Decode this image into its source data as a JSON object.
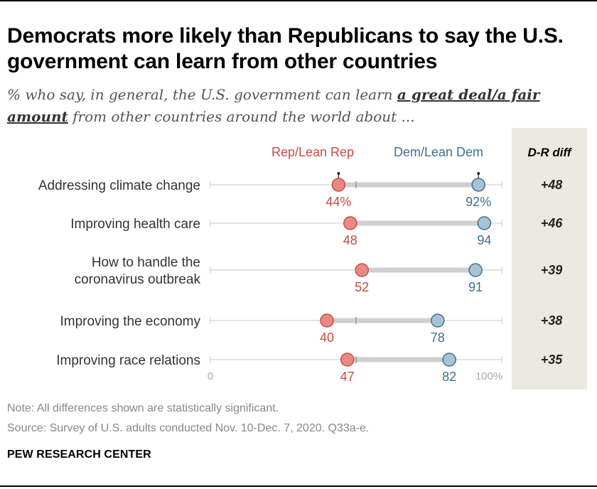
{
  "title": "Democrats more likely than Republicans to say the U.S. government can learn from other countries",
  "subtitle": {
    "pre": "% who say, in general, the U.S. government can learn ",
    "emphasis": "a great deal/a fair amount",
    "post": " from other countries around the world about ..."
  },
  "chart_data": {
    "type": "dot",
    "xlim": [
      0,
      100
    ],
    "axis": {
      "min_label": "0",
      "max_label": "100%"
    },
    "diff_header": "D-R diff",
    "series": [
      {
        "name": "Rep/Lean Rep",
        "color": "#c94a44",
        "fill": "#e88a84"
      },
      {
        "name": "Dem/Lean Dem",
        "color": "#3f6f8f",
        "fill": "#a9c3d6"
      }
    ],
    "categories": [
      {
        "label_lines": [
          "Addressing climate change"
        ],
        "rep": 44,
        "dem": 92,
        "rep_label": "44%",
        "dem_label": "92%",
        "diff": "+48"
      },
      {
        "label_lines": [
          "Improving health care"
        ],
        "rep": 48,
        "dem": 94,
        "rep_label": "48",
        "dem_label": "94",
        "diff": "+46"
      },
      {
        "label_lines": [
          "How to handle the",
          "coronavirus outbreak"
        ],
        "rep": 52,
        "dem": 91,
        "rep_label": "52",
        "dem_label": "91",
        "diff": "+39"
      },
      {
        "label_lines": [
          "Improving the economy"
        ],
        "rep": 40,
        "dem": 78,
        "rep_label": "40",
        "dem_label": "78",
        "diff": "+38"
      },
      {
        "label_lines": [
          "Improving race relations"
        ],
        "rep": 47,
        "dem": 82,
        "rep_label": "47",
        "dem_label": "82",
        "diff": "+35"
      }
    ]
  },
  "footer": {
    "note": "Note: All differences shown are statistically significant.",
    "source": "Source: Survey of U.S. adults conducted Nov. 10-Dec. 7, 2020. Q33a-e."
  },
  "brand": "PEW RESEARCH CENTER"
}
